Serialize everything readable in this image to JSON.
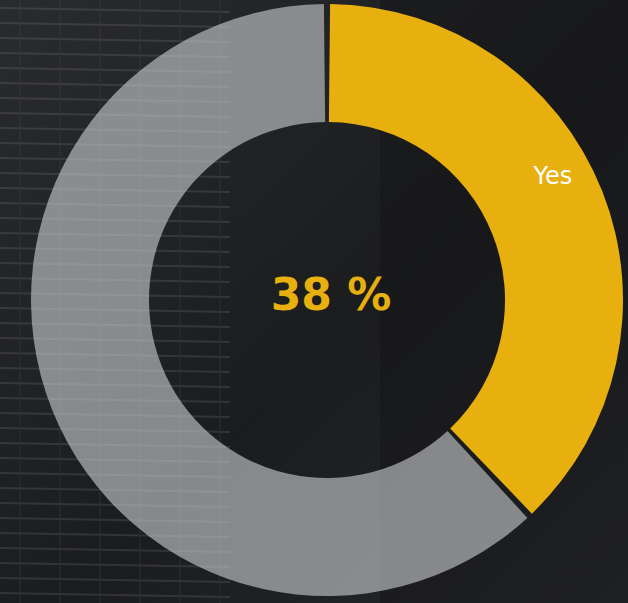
{
  "chart_data": {
    "type": "donut",
    "categories": [
      "Yes",
      null
    ],
    "values": [
      38,
      62
    ],
    "value_labels": [
      "38 %",
      null
    ],
    "colors": [
      "#e8b00e",
      "#c9cbcd"
    ],
    "data_labels": true
  }
}
